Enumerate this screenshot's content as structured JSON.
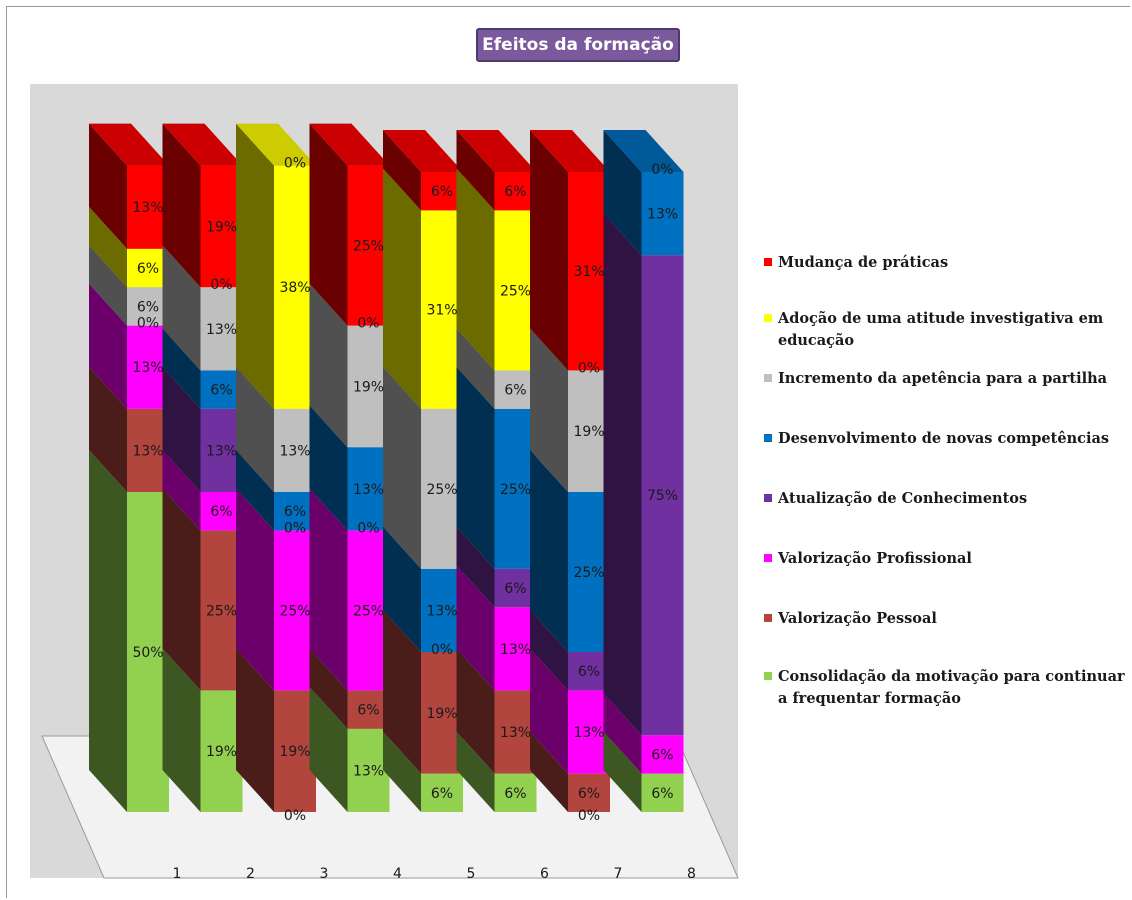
{
  "chart_data": {
    "type": "bar",
    "stacked": true,
    "three_d": true,
    "title": "Efeitos da formação",
    "categories": [
      "1",
      "2",
      "3",
      "4",
      "5",
      "6",
      "7",
      "8"
    ],
    "ylim": [
      0,
      100
    ],
    "legend_position": "right",
    "series": [
      {
        "name": "Consolidação da motivação para continuar a frequentar formação",
        "color": "#92d050",
        "values": [
          50,
          19,
          0,
          13,
          6,
          6,
          0,
          6
        ],
        "labels": [
          "50%",
          "19%",
          "0%",
          "13%",
          "6%",
          "6%",
          "0%",
          "6%"
        ]
      },
      {
        "name": "Valorização Pessoal",
        "color": "#b3453f",
        "values": [
          13,
          25,
          19,
          6,
          19,
          13,
          6,
          0
        ],
        "labels": [
          "13%",
          "25%",
          "19%",
          "6%",
          "19%",
          "13%",
          "6%",
          ""
        ]
      },
      {
        "name": "Valorização Profissional",
        "color": "#ff00ff",
        "values": [
          13,
          6,
          25,
          25,
          0,
          13,
          13,
          6
        ],
        "labels": [
          "13%",
          "6%",
          "25%",
          "25%",
          "0%",
          "13%",
          "13%",
          "6%"
        ]
      },
      {
        "name": "Atualização de Conhecimentos",
        "color": "#7030a0",
        "values": [
          0,
          13,
          0,
          0,
          0,
          6,
          6,
          75
        ],
        "labels": [
          "0%",
          "13%",
          "0%",
          "0%",
          "",
          "6%",
          "6%",
          "75%"
        ]
      },
      {
        "name": "Desenvolvimento de novas competências",
        "color": "#0070c0",
        "values": [
          0,
          6,
          6,
          13,
          13,
          25,
          25,
          13
        ],
        "labels": [
          "",
          "6%",
          "6%",
          "13%",
          "13%",
          "25%",
          "25%",
          "13%"
        ]
      },
      {
        "name": "Incremento da apetência para a partilha",
        "color": "#bfbfbf",
        "values": [
          6,
          13,
          13,
          19,
          25,
          6,
          19,
          0
        ],
        "labels": [
          "6%",
          "13%",
          "13%",
          "19%",
          "25%",
          "6%",
          "19%",
          ""
        ]
      },
      {
        "name": "Adoção de uma atitude investigativa em educação",
        "color": "#ffff00",
        "values": [
          6,
          0,
          38,
          0,
          31,
          25,
          0,
          0
        ],
        "labels": [
          "6%",
          "0%",
          "38%",
          "0%",
          "31%",
          "25%",
          "0%",
          ""
        ]
      },
      {
        "name": "Mudança de práticas",
        "color": "#ff0000",
        "values": [
          13,
          19,
          0,
          25,
          6,
          6,
          31,
          0
        ],
        "labels": [
          "13%",
          "19%",
          "0%",
          "25%",
          "6%",
          "6%",
          "31%",
          "0%"
        ]
      }
    ]
  }
}
